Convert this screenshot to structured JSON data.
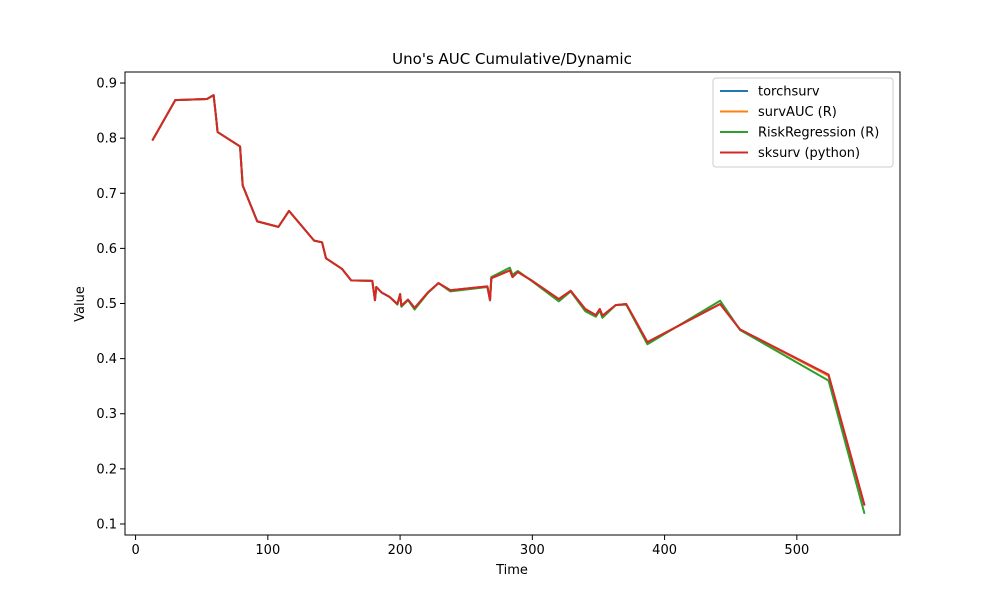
{
  "chart_data": {
    "type": "line",
    "title": "Uno's AUC Cumulative/Dynamic",
    "xlabel": "Time",
    "ylabel": "Value",
    "xlim": [
      -8,
      578
    ],
    "ylim": [
      0.08,
      0.92
    ],
    "xticks": [
      0,
      100,
      200,
      300,
      400,
      500
    ],
    "yticks": [
      0.1,
      0.2,
      0.3,
      0.4,
      0.5,
      0.6,
      0.7,
      0.8,
      0.9
    ],
    "ytick_labels": [
      "0.1",
      "0.2",
      "0.3",
      "0.4",
      "0.5",
      "0.6",
      "0.7",
      "0.8",
      "0.9"
    ],
    "grid": false,
    "legend_position": "top-right",
    "series": [
      {
        "name": "torchsurv",
        "color": "#1f77b4",
        "points": [
          [
            13,
            0.797
          ],
          [
            30,
            0.869
          ],
          [
            54,
            0.871
          ],
          [
            59,
            0.878
          ],
          [
            61,
            0.835
          ],
          [
            62,
            0.811
          ],
          [
            79,
            0.785
          ],
          [
            81,
            0.714
          ],
          [
            92,
            0.649
          ],
          [
            108,
            0.639
          ],
          [
            116,
            0.668
          ],
          [
            135,
            0.614
          ],
          [
            141,
            0.611
          ],
          [
            144,
            0.582
          ],
          [
            156,
            0.563
          ],
          [
            163,
            0.542
          ],
          [
            179,
            0.541
          ],
          [
            181,
            0.506
          ],
          [
            182,
            0.53
          ],
          [
            186,
            0.52
          ],
          [
            192,
            0.512
          ],
          [
            198,
            0.499
          ],
          [
            200,
            0.517
          ],
          [
            201,
            0.496
          ],
          [
            206,
            0.507
          ],
          [
            211,
            0.492
          ],
          [
            221,
            0.52
          ],
          [
            229,
            0.537
          ],
          [
            238,
            0.524
          ],
          [
            266,
            0.531
          ],
          [
            268,
            0.506
          ],
          [
            269,
            0.546
          ],
          [
            283,
            0.56
          ],
          [
            285,
            0.548
          ],
          [
            289,
            0.557
          ],
          [
            300,
            0.541
          ],
          [
            320,
            0.508
          ],
          [
            329,
            0.523
          ],
          [
            340,
            0.49
          ],
          [
            348,
            0.479
          ],
          [
            351,
            0.49
          ],
          [
            353,
            0.478
          ],
          [
            363,
            0.497
          ],
          [
            371,
            0.499
          ],
          [
            387,
            0.43
          ],
          [
            442,
            0.499
          ],
          [
            457,
            0.453
          ],
          [
            524,
            0.369
          ],
          [
            551,
            0.135
          ]
        ]
      },
      {
        "name": "survAUC (R)",
        "color": "#ff7f0e",
        "points": [
          [
            13,
            0.797
          ],
          [
            30,
            0.869
          ],
          [
            54,
            0.871
          ],
          [
            59,
            0.878
          ],
          [
            61,
            0.835
          ],
          [
            62,
            0.811
          ],
          [
            79,
            0.785
          ],
          [
            81,
            0.714
          ],
          [
            92,
            0.649
          ],
          [
            108,
            0.639
          ],
          [
            116,
            0.668
          ],
          [
            135,
            0.614
          ],
          [
            141,
            0.611
          ],
          [
            144,
            0.582
          ],
          [
            156,
            0.563
          ],
          [
            163,
            0.542
          ],
          [
            179,
            0.541
          ],
          [
            181,
            0.506
          ],
          [
            182,
            0.53
          ],
          [
            186,
            0.52
          ],
          [
            192,
            0.512
          ],
          [
            198,
            0.499
          ],
          [
            200,
            0.517
          ],
          [
            201,
            0.496
          ],
          [
            206,
            0.507
          ],
          [
            211,
            0.492
          ],
          [
            221,
            0.52
          ],
          [
            229,
            0.537
          ],
          [
            238,
            0.524
          ],
          [
            266,
            0.531
          ],
          [
            268,
            0.506
          ],
          [
            269,
            0.546
          ],
          [
            283,
            0.56
          ],
          [
            285,
            0.548
          ],
          [
            289,
            0.557
          ],
          [
            300,
            0.541
          ],
          [
            320,
            0.508
          ],
          [
            329,
            0.523
          ],
          [
            340,
            0.49
          ],
          [
            348,
            0.479
          ],
          [
            351,
            0.49
          ],
          [
            353,
            0.478
          ],
          [
            363,
            0.497
          ],
          [
            371,
            0.499
          ],
          [
            387,
            0.43
          ],
          [
            442,
            0.499
          ],
          [
            457,
            0.453
          ],
          [
            524,
            0.369
          ],
          [
            551,
            0.135
          ]
        ]
      },
      {
        "name": "RiskRegression (R)",
        "color": "#2ca02c",
        "points": [
          [
            13,
            0.797
          ],
          [
            30,
            0.869
          ],
          [
            54,
            0.871
          ],
          [
            59,
            0.878
          ],
          [
            61,
            0.835
          ],
          [
            62,
            0.811
          ],
          [
            79,
            0.785
          ],
          [
            81,
            0.714
          ],
          [
            92,
            0.649
          ],
          [
            108,
            0.639
          ],
          [
            116,
            0.668
          ],
          [
            135,
            0.614
          ],
          [
            141,
            0.611
          ],
          [
            144,
            0.582
          ],
          [
            156,
            0.563
          ],
          [
            163,
            0.542
          ],
          [
            179,
            0.541
          ],
          [
            181,
            0.506
          ],
          [
            182,
            0.53
          ],
          [
            186,
            0.52
          ],
          [
            192,
            0.512
          ],
          [
            198,
            0.498
          ],
          [
            200,
            0.517
          ],
          [
            201,
            0.494
          ],
          [
            206,
            0.506
          ],
          [
            211,
            0.489
          ],
          [
            221,
            0.519
          ],
          [
            229,
            0.537
          ],
          [
            238,
            0.522
          ],
          [
            266,
            0.53
          ],
          [
            268,
            0.506
          ],
          [
            269,
            0.548
          ],
          [
            283,
            0.565
          ],
          [
            285,
            0.552
          ],
          [
            289,
            0.559
          ],
          [
            300,
            0.54
          ],
          [
            320,
            0.504
          ],
          [
            329,
            0.522
          ],
          [
            340,
            0.486
          ],
          [
            348,
            0.476
          ],
          [
            351,
            0.487
          ],
          [
            353,
            0.474
          ],
          [
            363,
            0.497
          ],
          [
            371,
            0.498
          ],
          [
            387,
            0.426
          ],
          [
            442,
            0.505
          ],
          [
            457,
            0.452
          ],
          [
            524,
            0.36
          ],
          [
            551,
            0.12
          ]
        ]
      },
      {
        "name": "sksurv (python)",
        "color": "#d62728",
        "points": [
          [
            13,
            0.797
          ],
          [
            30,
            0.869
          ],
          [
            54,
            0.871
          ],
          [
            59,
            0.878
          ],
          [
            61,
            0.835
          ],
          [
            62,
            0.811
          ],
          [
            79,
            0.785
          ],
          [
            81,
            0.714
          ],
          [
            92,
            0.649
          ],
          [
            108,
            0.639
          ],
          [
            116,
            0.668
          ],
          [
            135,
            0.614
          ],
          [
            141,
            0.611
          ],
          [
            144,
            0.582
          ],
          [
            156,
            0.563
          ],
          [
            163,
            0.542
          ],
          [
            179,
            0.541
          ],
          [
            181,
            0.506
          ],
          [
            182,
            0.53
          ],
          [
            186,
            0.52
          ],
          [
            192,
            0.512
          ],
          [
            198,
            0.499
          ],
          [
            200,
            0.517
          ],
          [
            201,
            0.496
          ],
          [
            206,
            0.507
          ],
          [
            211,
            0.492
          ],
          [
            221,
            0.52
          ],
          [
            229,
            0.537
          ],
          [
            238,
            0.524
          ],
          [
            266,
            0.531
          ],
          [
            268,
            0.506
          ],
          [
            269,
            0.546
          ],
          [
            283,
            0.56
          ],
          [
            285,
            0.548
          ],
          [
            289,
            0.557
          ],
          [
            300,
            0.541
          ],
          [
            320,
            0.508
          ],
          [
            329,
            0.523
          ],
          [
            340,
            0.49
          ],
          [
            348,
            0.479
          ],
          [
            351,
            0.49
          ],
          [
            353,
            0.478
          ],
          [
            363,
            0.497
          ],
          [
            371,
            0.499
          ],
          [
            387,
            0.43
          ],
          [
            442,
            0.499
          ],
          [
            457,
            0.453
          ],
          [
            524,
            0.371
          ],
          [
            551,
            0.135
          ]
        ]
      }
    ]
  }
}
